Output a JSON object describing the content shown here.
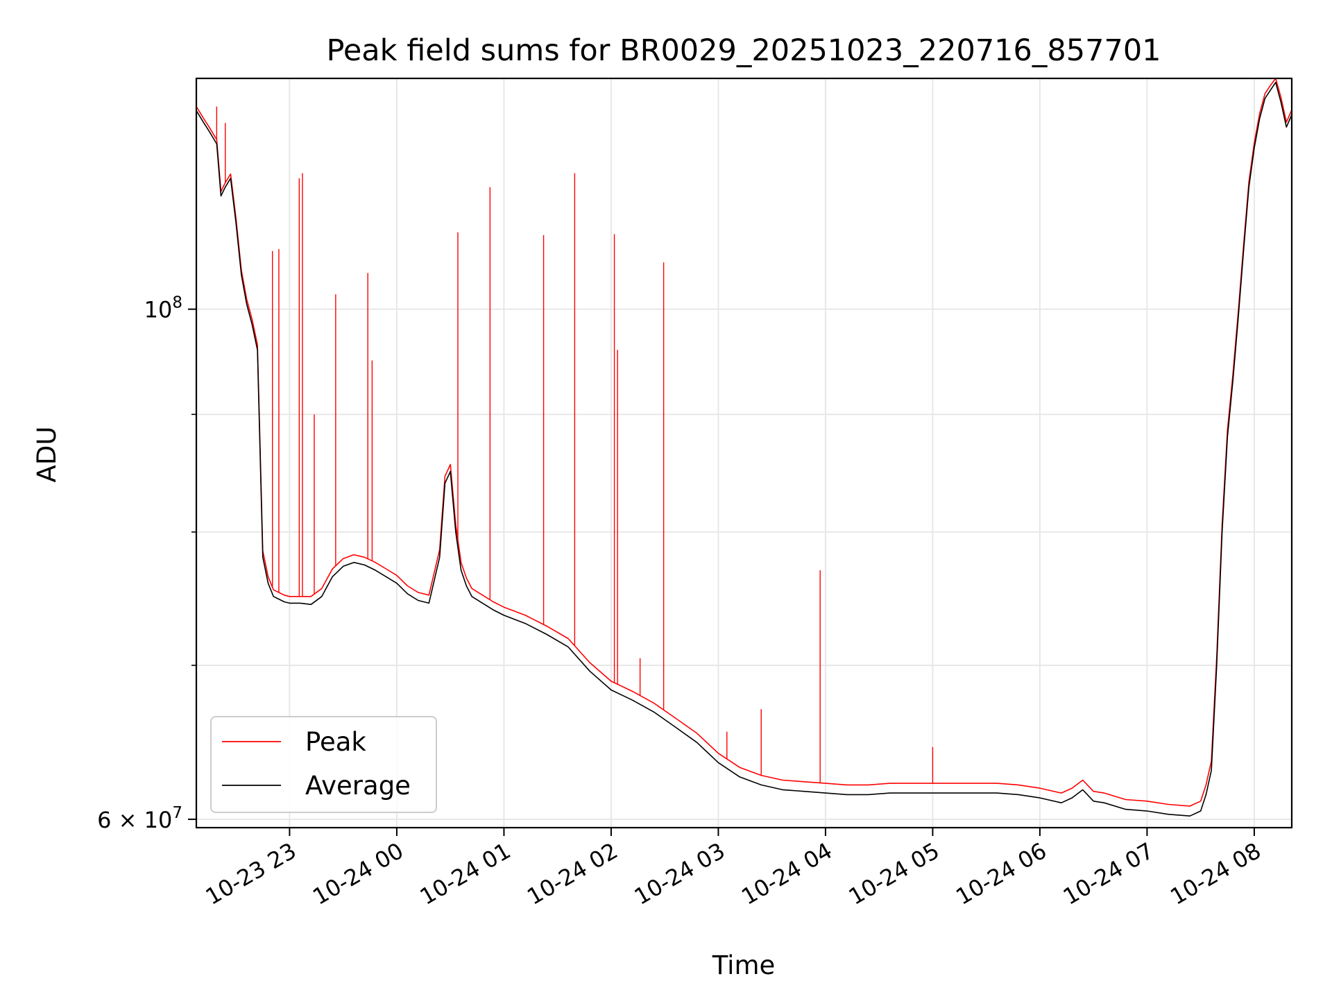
{
  "chart_data": {
    "type": "line",
    "title": "Peak field sums for BR0029_20251023_220716_857701",
    "xlabel": "Time",
    "ylabel": "ADU",
    "yscale": "log",
    "xlim_hours": [
      22.13,
      32.35
    ],
    "ylim": [
      59500000,
      126000000
    ],
    "grid": true,
    "legend": {
      "position": "lower-left",
      "entries": [
        "Peak",
        "Average"
      ]
    },
    "x_ticks": [
      {
        "hour": 23,
        "label": "10-23 23"
      },
      {
        "hour": 24,
        "label": "10-24 00"
      },
      {
        "hour": 25,
        "label": "10-24 01"
      },
      {
        "hour": 26,
        "label": "10-24 02"
      },
      {
        "hour": 27,
        "label": "10-24 03"
      },
      {
        "hour": 28,
        "label": "10-24 04"
      },
      {
        "hour": 29,
        "label": "10-24 05"
      },
      {
        "hour": 30,
        "label": "10-24 06"
      },
      {
        "hour": 31,
        "label": "10-24 07"
      },
      {
        "hour": 32,
        "label": "10-24 08"
      }
    ],
    "y_major_ticks": [
      {
        "value": 100000000,
        "label_base": "10",
        "label_exp": "8"
      },
      {
        "value": 60000000,
        "label_base": "6 × 10",
        "label_exp": "7"
      }
    ],
    "y_minor_ticks": [
      70000000,
      80000000,
      90000000
    ],
    "series": [
      {
        "name": "Average",
        "color": "#000000",
        "x": [
          22.13,
          22.2,
          22.25,
          22.32,
          22.36,
          22.4,
          22.45,
          22.5,
          22.55,
          22.6,
          22.65,
          22.7,
          22.75,
          22.8,
          22.85,
          22.9,
          22.95,
          23.0,
          23.1,
          23.2,
          23.3,
          23.4,
          23.5,
          23.6,
          23.7,
          23.8,
          23.9,
          24.0,
          24.1,
          24.2,
          24.3,
          24.4,
          24.45,
          24.5,
          24.55,
          24.6,
          24.65,
          24.7,
          24.8,
          24.9,
          25.0,
          25.2,
          25.4,
          25.6,
          25.8,
          26.0,
          26.2,
          26.4,
          26.6,
          26.8,
          27.0,
          27.2,
          27.4,
          27.6,
          27.8,
          28.0,
          28.2,
          28.4,
          28.6,
          28.8,
          29.0,
          29.2,
          29.4,
          29.6,
          29.8,
          30.0,
          30.2,
          30.3,
          30.4,
          30.5,
          30.6,
          30.8,
          31.0,
          31.2,
          31.4,
          31.5,
          31.55,
          31.6,
          31.65,
          31.7,
          31.75,
          31.8,
          31.85,
          31.9,
          31.95,
          32.0,
          32.05,
          32.1,
          32.15,
          32.2,
          32.25,
          32.3,
          32.35
        ],
        "values": [
          122000000,
          120500000,
          119500000,
          118000000,
          112000000,
          113000000,
          114000000,
          109000000,
          103500000,
          100500000,
          98500000,
          96000000,
          78000000,
          76000000,
          75000000,
          74800000,
          74600000,
          74500000,
          74500000,
          74400000,
          75000000,
          76500000,
          77300000,
          77600000,
          77400000,
          77000000,
          76500000,
          76000000,
          75200000,
          74700000,
          74500000,
          78000000,
          84000000,
          85000000,
          80000000,
          77000000,
          75800000,
          75000000,
          74500000,
          74000000,
          73600000,
          73000000,
          72200000,
          71300000,
          69600000,
          68300000,
          67600000,
          66800000,
          65800000,
          64800000,
          63500000,
          62600000,
          62100000,
          61800000,
          61700000,
          61600000,
          61500000,
          61500000,
          61600000,
          61600000,
          61600000,
          61600000,
          61600000,
          61600000,
          61500000,
          61300000,
          61000000,
          61300000,
          61800000,
          61100000,
          61000000,
          60600000,
          60500000,
          60300000,
          60200000,
          60500000,
          61500000,
          63000000,
          70000000,
          80000000,
          88000000,
          93000000,
          99000000,
          106000000,
          113000000,
          117500000,
          121000000,
          123500000,
          124500000,
          125500000,
          123000000,
          120000000,
          121500000
        ]
      },
      {
        "name": "Peak",
        "color": "#ff0000",
        "x": [
          22.13,
          22.2,
          22.25,
          22.32,
          22.36,
          22.4,
          22.45,
          22.5,
          22.55,
          22.6,
          22.65,
          22.7,
          22.75,
          22.8,
          22.85,
          22.9,
          22.95,
          23.0,
          23.1,
          23.2,
          23.3,
          23.4,
          23.5,
          23.6,
          23.7,
          23.8,
          23.9,
          24.0,
          24.1,
          24.2,
          24.3,
          24.4,
          24.45,
          24.5,
          24.55,
          24.6,
          24.65,
          24.7,
          24.8,
          24.9,
          25.0,
          25.2,
          25.4,
          25.6,
          25.8,
          26.0,
          26.2,
          26.4,
          26.6,
          26.8,
          27.0,
          27.2,
          27.4,
          27.6,
          27.8,
          28.0,
          28.2,
          28.4,
          28.6,
          28.8,
          29.0,
          29.2,
          29.4,
          29.6,
          29.8,
          30.0,
          30.2,
          30.3,
          30.4,
          30.5,
          30.6,
          30.8,
          31.0,
          31.2,
          31.4,
          31.5,
          31.55,
          31.6,
          31.65,
          31.7,
          31.75,
          31.8,
          31.85,
          31.9,
          31.95,
          32.0,
          32.05,
          32.1,
          32.15,
          32.2,
          32.25,
          32.3,
          32.35
        ],
        "values": [
          122500000,
          121000000,
          120000000,
          118500000,
          112500000,
          113500000,
          114500000,
          109500000,
          104000000,
          101000000,
          99000000,
          96500000,
          78500000,
          76500000,
          75500000,
          75300000,
          75100000,
          75000000,
          75000000,
          75000000,
          75600000,
          77100000,
          77900000,
          78200000,
          78000000,
          77600000,
          77100000,
          76600000,
          75800000,
          75300000,
          75100000,
          78600000,
          84600000,
          85600000,
          80600000,
          77600000,
          76400000,
          75600000,
          75100000,
          74600000,
          74200000,
          73600000,
          72800000,
          71900000,
          70200000,
          68900000,
          68200000,
          67400000,
          66400000,
          65400000,
          64100000,
          63200000,
          62700000,
          62400000,
          62300000,
          62200000,
          62100000,
          62100000,
          62200000,
          62200000,
          62200000,
          62200000,
          62200000,
          62200000,
          62100000,
          61900000,
          61600000,
          61900000,
          62400000,
          61700000,
          61600000,
          61200000,
          61100000,
          60900000,
          60800000,
          61100000,
          62100000,
          63600000,
          70600000,
          80600000,
          88600000,
          93600000,
          99600000,
          106600000,
          113600000,
          118100000,
          121600000,
          124100000,
          125100000,
          126000000,
          123600000,
          120600000,
          122100000
        ]
      }
    ],
    "peak_spikes": [
      {
        "x": 22.32,
        "value": 122500000
      },
      {
        "x": 22.4,
        "value": 120500000
      },
      {
        "x": 22.84,
        "value": 106000000
      },
      {
        "x": 22.9,
        "value": 106200000
      },
      {
        "x": 23.09,
        "value": 114000000
      },
      {
        "x": 23.12,
        "value": 114600000
      },
      {
        "x": 23.23,
        "value": 90000000
      },
      {
        "x": 23.43,
        "value": 101500000
      },
      {
        "x": 23.73,
        "value": 103700000
      },
      {
        "x": 23.77,
        "value": 95000000
      },
      {
        "x": 24.57,
        "value": 108000000
      },
      {
        "x": 24.87,
        "value": 113000000
      },
      {
        "x": 25.37,
        "value": 107700000
      },
      {
        "x": 25.66,
        "value": 114600000
      },
      {
        "x": 26.03,
        "value": 107800000
      },
      {
        "x": 26.06,
        "value": 96000000
      },
      {
        "x": 26.49,
        "value": 104800000
      },
      {
        "x": 26.27,
        "value": 70500000
      },
      {
        "x": 27.08,
        "value": 65500000
      },
      {
        "x": 27.4,
        "value": 67000000
      },
      {
        "x": 27.95,
        "value": 77000000
      },
      {
        "x": 29.0,
        "value": 64500000
      }
    ]
  }
}
